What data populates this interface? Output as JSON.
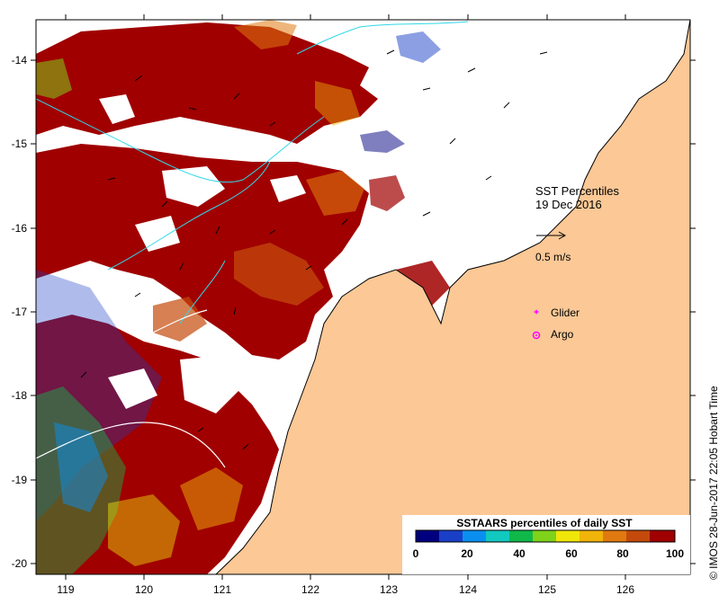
{
  "map": {
    "x_ticks": [
      "119",
      "120",
      "121",
      "122",
      "123",
      "124",
      "125",
      "126"
    ],
    "y_ticks": [
      "-14",
      "-15",
      "-16",
      "-17",
      "-18",
      "-19",
      "-20"
    ],
    "title_line1": "SST Percentiles",
    "title_line2": "19 Dec 2016",
    "velocity_scale_label": "0.5 m/s",
    "glider_label": "Glider",
    "argo_label": "Argo",
    "side_label": "© IMOS 28-Jun-2017 22:05 Hobart Time"
  },
  "legend": {
    "title": "SSTAARS percentiles of daily SST",
    "tick_labels": [
      "0",
      "20",
      "40",
      "60",
      "80",
      "100"
    ],
    "colors": [
      "#00007f",
      "#1a3fc7",
      "#0a8ff0",
      "#12c9c0",
      "#10b84a",
      "#7fd21a",
      "#f0e60a",
      "#f0b40a",
      "#e07a10",
      "#c44a0c",
      "#a00000"
    ]
  },
  "colors": {
    "land": "#fbc896",
    "ocean_empty": "#ffffff",
    "high_percentile": "#a00000",
    "coast": "#000000",
    "contour": "#30d8e8",
    "glider_marker": "#ff00ff"
  }
}
